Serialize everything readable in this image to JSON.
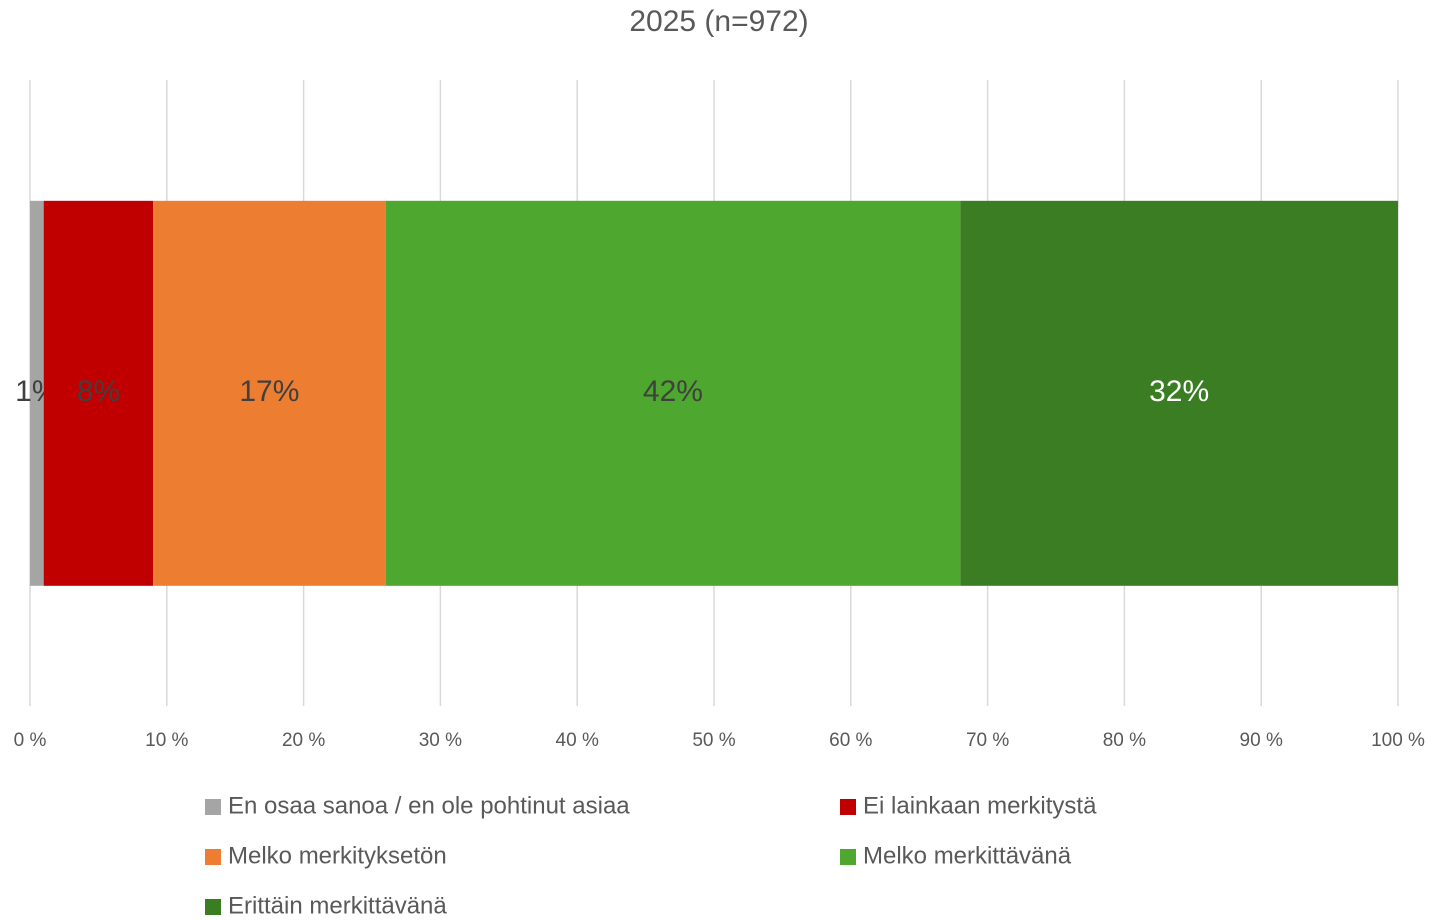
{
  "chart_data": {
    "type": "bar",
    "orientation": "horizontal",
    "stacked": true,
    "title": "2025 (n=972)",
    "categories": [
      null
    ],
    "series": [
      {
        "name": "En osaa sanoa / en ole pohtinut asiaa",
        "color": "#a5a5a5",
        "label_color": "#404040",
        "values": [
          1
        ],
        "value_labels": [
          "1%"
        ]
      },
      {
        "name": "Ei lainkaan merkitystä",
        "color": "#c00000",
        "label_color": "#404040",
        "values": [
          8
        ],
        "value_labels": [
          "8%"
        ]
      },
      {
        "name": "Melko merkityksetön",
        "color": "#ed7d31",
        "label_color": "#404040",
        "values": [
          17
        ],
        "value_labels": [
          "17%"
        ]
      },
      {
        "name": "Melko merkittävänä",
        "color": "#4ea72e",
        "label_color": "#404040",
        "values": [
          42
        ],
        "value_labels": [
          "42%"
        ]
      },
      {
        "name": "Erittäin merkittävänä",
        "color": "#3b7d23",
        "label_color": "#ffffff",
        "values": [
          32
        ],
        "value_labels": [
          "32%"
        ]
      }
    ],
    "xlim": [
      0,
      100
    ],
    "xticks": [
      {
        "value": 0,
        "label": "0 %"
      },
      {
        "value": 10,
        "label": "10 %"
      },
      {
        "value": 20,
        "label": "20 %"
      },
      {
        "value": 30,
        "label": "30 %"
      },
      {
        "value": 40,
        "label": "40 %"
      },
      {
        "value": 50,
        "label": "50 %"
      },
      {
        "value": 60,
        "label": "60 %"
      },
      {
        "value": 70,
        "label": "70 %"
      },
      {
        "value": 80,
        "label": "80 %"
      },
      {
        "value": 90,
        "label": "90 %"
      },
      {
        "value": 100,
        "label": "100 %"
      }
    ],
    "grid": true,
    "legend": "bottom"
  }
}
